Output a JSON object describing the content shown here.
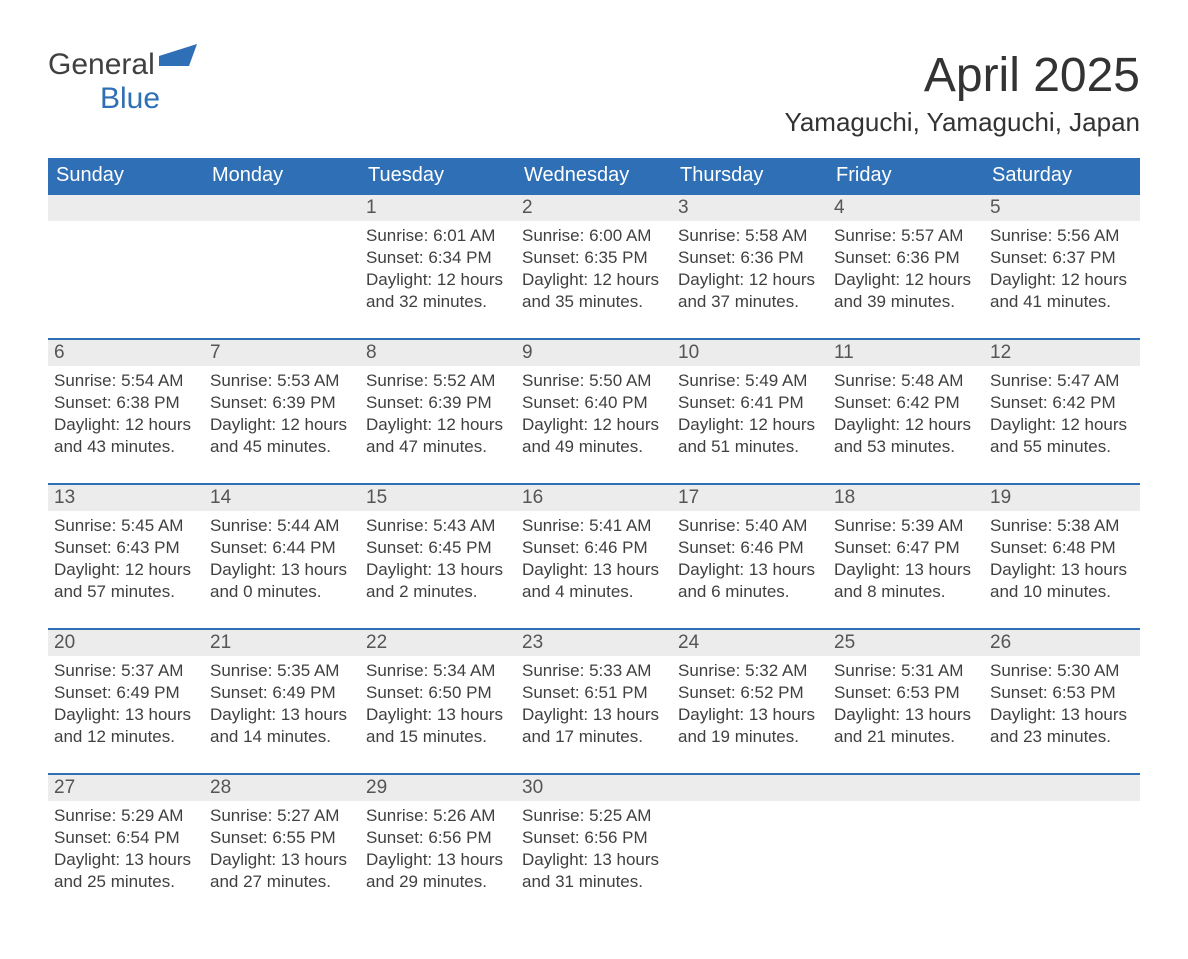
{
  "logo": {
    "text1": "General",
    "text2": "Blue",
    "icon_color": "#2f6fb5"
  },
  "title": "April 2025",
  "location": "Yamaguchi, Yamaguchi, Japan",
  "colors": {
    "header_bg": "#2f6fb5",
    "header_text": "#ffffff",
    "daynum_bg": "#ececec",
    "row_border": "#2f6fb5",
    "body_text": "#404040",
    "background": "#ffffff"
  },
  "weekdays": [
    "Sunday",
    "Monday",
    "Tuesday",
    "Wednesday",
    "Thursday",
    "Friday",
    "Saturday"
  ],
  "weeks": [
    [
      null,
      null,
      {
        "n": "1",
        "sunrise": "6:01 AM",
        "sunset": "6:34 PM",
        "dl1": "Daylight: 12 hours",
        "dl2": "and 32 minutes."
      },
      {
        "n": "2",
        "sunrise": "6:00 AM",
        "sunset": "6:35 PM",
        "dl1": "Daylight: 12 hours",
        "dl2": "and 35 minutes."
      },
      {
        "n": "3",
        "sunrise": "5:58 AM",
        "sunset": "6:36 PM",
        "dl1": "Daylight: 12 hours",
        "dl2": "and 37 minutes."
      },
      {
        "n": "4",
        "sunrise": "5:57 AM",
        "sunset": "6:36 PM",
        "dl1": "Daylight: 12 hours",
        "dl2": "and 39 minutes."
      },
      {
        "n": "5",
        "sunrise": "5:56 AM",
        "sunset": "6:37 PM",
        "dl1": "Daylight: 12 hours",
        "dl2": "and 41 minutes."
      }
    ],
    [
      {
        "n": "6",
        "sunrise": "5:54 AM",
        "sunset": "6:38 PM",
        "dl1": "Daylight: 12 hours",
        "dl2": "and 43 minutes."
      },
      {
        "n": "7",
        "sunrise": "5:53 AM",
        "sunset": "6:39 PM",
        "dl1": "Daylight: 12 hours",
        "dl2": "and 45 minutes."
      },
      {
        "n": "8",
        "sunrise": "5:52 AM",
        "sunset": "6:39 PM",
        "dl1": "Daylight: 12 hours",
        "dl2": "and 47 minutes."
      },
      {
        "n": "9",
        "sunrise": "5:50 AM",
        "sunset": "6:40 PM",
        "dl1": "Daylight: 12 hours",
        "dl2": "and 49 minutes."
      },
      {
        "n": "10",
        "sunrise": "5:49 AM",
        "sunset": "6:41 PM",
        "dl1": "Daylight: 12 hours",
        "dl2": "and 51 minutes."
      },
      {
        "n": "11",
        "sunrise": "5:48 AM",
        "sunset": "6:42 PM",
        "dl1": "Daylight: 12 hours",
        "dl2": "and 53 minutes."
      },
      {
        "n": "12",
        "sunrise": "5:47 AM",
        "sunset": "6:42 PM",
        "dl1": "Daylight: 12 hours",
        "dl2": "and 55 minutes."
      }
    ],
    [
      {
        "n": "13",
        "sunrise": "5:45 AM",
        "sunset": "6:43 PM",
        "dl1": "Daylight: 12 hours",
        "dl2": "and 57 minutes."
      },
      {
        "n": "14",
        "sunrise": "5:44 AM",
        "sunset": "6:44 PM",
        "dl1": "Daylight: 13 hours",
        "dl2": "and 0 minutes."
      },
      {
        "n": "15",
        "sunrise": "5:43 AM",
        "sunset": "6:45 PM",
        "dl1": "Daylight: 13 hours",
        "dl2": "and 2 minutes."
      },
      {
        "n": "16",
        "sunrise": "5:41 AM",
        "sunset": "6:46 PM",
        "dl1": "Daylight: 13 hours",
        "dl2": "and 4 minutes."
      },
      {
        "n": "17",
        "sunrise": "5:40 AM",
        "sunset": "6:46 PM",
        "dl1": "Daylight: 13 hours",
        "dl2": "and 6 minutes."
      },
      {
        "n": "18",
        "sunrise": "5:39 AM",
        "sunset": "6:47 PM",
        "dl1": "Daylight: 13 hours",
        "dl2": "and 8 minutes."
      },
      {
        "n": "19",
        "sunrise": "5:38 AM",
        "sunset": "6:48 PM",
        "dl1": "Daylight: 13 hours",
        "dl2": "and 10 minutes."
      }
    ],
    [
      {
        "n": "20",
        "sunrise": "5:37 AM",
        "sunset": "6:49 PM",
        "dl1": "Daylight: 13 hours",
        "dl2": "and 12 minutes."
      },
      {
        "n": "21",
        "sunrise": "5:35 AM",
        "sunset": "6:49 PM",
        "dl1": "Daylight: 13 hours",
        "dl2": "and 14 minutes."
      },
      {
        "n": "22",
        "sunrise": "5:34 AM",
        "sunset": "6:50 PM",
        "dl1": "Daylight: 13 hours",
        "dl2": "and 15 minutes."
      },
      {
        "n": "23",
        "sunrise": "5:33 AM",
        "sunset": "6:51 PM",
        "dl1": "Daylight: 13 hours",
        "dl2": "and 17 minutes."
      },
      {
        "n": "24",
        "sunrise": "5:32 AM",
        "sunset": "6:52 PM",
        "dl1": "Daylight: 13 hours",
        "dl2": "and 19 minutes."
      },
      {
        "n": "25",
        "sunrise": "5:31 AM",
        "sunset": "6:53 PM",
        "dl1": "Daylight: 13 hours",
        "dl2": "and 21 minutes."
      },
      {
        "n": "26",
        "sunrise": "5:30 AM",
        "sunset": "6:53 PM",
        "dl1": "Daylight: 13 hours",
        "dl2": "and 23 minutes."
      }
    ],
    [
      {
        "n": "27",
        "sunrise": "5:29 AM",
        "sunset": "6:54 PM",
        "dl1": "Daylight: 13 hours",
        "dl2": "and 25 minutes."
      },
      {
        "n": "28",
        "sunrise": "5:27 AM",
        "sunset": "6:55 PM",
        "dl1": "Daylight: 13 hours",
        "dl2": "and 27 minutes."
      },
      {
        "n": "29",
        "sunrise": "5:26 AM",
        "sunset": "6:56 PM",
        "dl1": "Daylight: 13 hours",
        "dl2": "and 29 minutes."
      },
      {
        "n": "30",
        "sunrise": "5:25 AM",
        "sunset": "6:56 PM",
        "dl1": "Daylight: 13 hours",
        "dl2": "and 31 minutes."
      },
      null,
      null,
      null
    ]
  ],
  "labels": {
    "sunrise": "Sunrise: ",
    "sunset": "Sunset: "
  }
}
